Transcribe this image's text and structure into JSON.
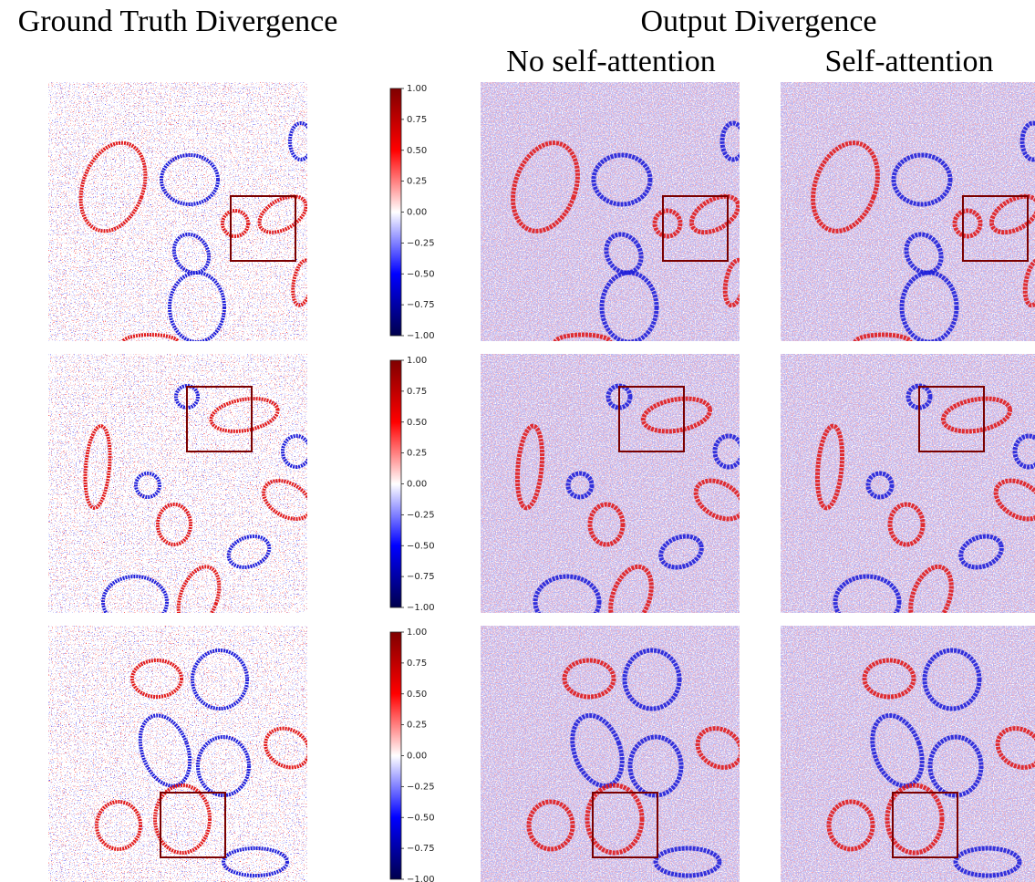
{
  "headers": {
    "ground_truth": "Ground Truth Divergence",
    "output": "Output Divergence",
    "no_self_attention": "No self-attention",
    "self_attention": "Self-attention"
  },
  "colorbar": {
    "ticks": [
      {
        "value": 1,
        "label": "1.00"
      },
      0.75,
      {
        "value": 0.5,
        "label": "0.50"
      },
      0.25,
      {
        "value": 0,
        "label": "0.00"
      },
      {
        "value": -0.25,
        "label": "−0.25"
      },
      {
        "value": -0.5,
        "label": "−0.50"
      },
      {
        "value": -0.75,
        "label": "−0.75"
      },
      {
        "value": -1,
        "label": "−1.00"
      }
    ]
  }
}
